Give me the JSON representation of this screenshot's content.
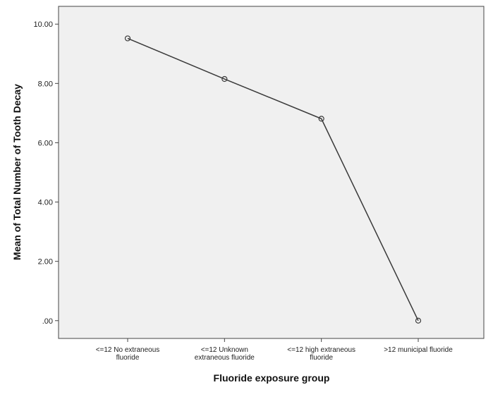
{
  "chart_data": {
    "type": "line",
    "xlabel": "Fluoride exposure group",
    "ylabel": "Mean of Total Number of Tooth Decay",
    "categories": [
      [
        "<=12 No extraneous",
        "fluoride"
      ],
      [
        "<=12 Unknown",
        "extraneous fluoride"
      ],
      [
        "<=12 high extraneous",
        "fluoride"
      ],
      [
        ">12 municipal fluoride"
      ]
    ],
    "values": [
      9.52,
      8.15,
      6.81,
      0.0
    ],
    "ylim": [
      -0.6,
      10.6
    ],
    "yticks": [
      0,
      2,
      4,
      6,
      8,
      10
    ],
    "ytick_labels": [
      ".00",
      "2.00",
      "4.00",
      "6.00",
      "8.00",
      "10.00"
    ],
    "grid": false,
    "legend": "none",
    "colors": {
      "plot_background": "#f0f0f0",
      "line": "#3a3a3a",
      "marker": "#3a3a3a",
      "frame": "#444444"
    }
  }
}
